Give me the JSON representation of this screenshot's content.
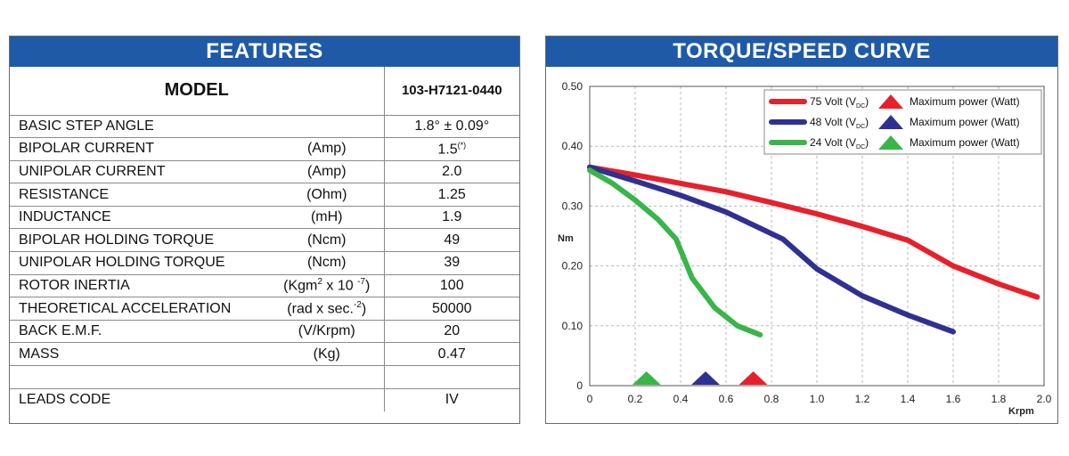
{
  "features": {
    "title": "FEATURES",
    "model_label": "MODEL",
    "model_value": "103-H7121-0440",
    "rows": [
      {
        "name": "BASIC STEP ANGLE",
        "unit": "",
        "value": "1.8° ± 0.09°"
      },
      {
        "name": "BIPOLAR CURRENT",
        "unit": "(Amp)",
        "value": "1.5",
        "note": "(*)"
      },
      {
        "name": "UNIPOLAR CURRENT",
        "unit": "(Amp)",
        "value": "2.0"
      },
      {
        "name": "RESISTANCE",
        "unit": "(Ohm)",
        "value": "1.25"
      },
      {
        "name": "INDUCTANCE",
        "unit": "(mH)",
        "value": "1.9"
      },
      {
        "name": "BIPOLAR HOLDING TORQUE",
        "unit": "(Ncm)",
        "value": "49"
      },
      {
        "name": "UNIPOLAR HOLDING TORQUE",
        "unit": "(Ncm)",
        "value": "39"
      },
      {
        "name": "ROTOR INERTIA",
        "unit": "(Kgm",
        "unit_sup1": "2",
        "unit_mid": " x 10 ",
        "unit_sup2": "-7",
        "unit_end": ")",
        "value": "100"
      },
      {
        "name": "THEORETICAL ACCELERATION",
        "unit": "(rad x sec.",
        "unit_sup1": "-2",
        "unit_end": ")",
        "value": "50000"
      },
      {
        "name": "BACK E.M.F.",
        "unit": "(V/Krpm)",
        "value": "20"
      },
      {
        "name": "MASS",
        "unit": "(Kg)",
        "value": "0.47"
      },
      {
        "name": "",
        "unit": "",
        "value": ""
      },
      {
        "name": "LEADS CODE",
        "unit": "",
        "value": "IV"
      }
    ]
  },
  "chart_data": {
    "type": "line",
    "title": "TORQUE/SPEED CURVE",
    "xlabel": "Krpm",
    "ylabel": "Nm",
    "xlim": [
      0,
      2.0
    ],
    "ylim": [
      0,
      0.5
    ],
    "xticks": [
      "0",
      "0.2",
      "0.4",
      "0.6",
      "0.8",
      "1.0",
      "1.2",
      "1.4",
      "1.6",
      "1.8",
      "2.0"
    ],
    "yticks": [
      "0",
      "0.10",
      "0.20",
      "0.30",
      "0.40",
      "0.50"
    ],
    "grid": true,
    "legend_position": "top-right",
    "series": [
      {
        "name": "75 Volt (V",
        "name_sub": "DC",
        "name_end": ")",
        "color": "#e8202a",
        "x": [
          0,
          0.2,
          0.4,
          0.6,
          0.8,
          1.0,
          1.2,
          1.4,
          1.6,
          1.8,
          1.97
        ],
        "y": [
          0.365,
          0.352,
          0.338,
          0.324,
          0.306,
          0.287,
          0.266,
          0.243,
          0.2,
          0.17,
          0.148
        ],
        "max_power_label": "Maximum power (Watt)",
        "marker_x": 0.72
      },
      {
        "name": "48 Volt (V",
        "name_sub": "DC",
        "name_end": ")",
        "color": "#2e3192",
        "x": [
          0,
          0.2,
          0.4,
          0.6,
          0.85,
          1.0,
          1.2,
          1.4,
          1.6
        ],
        "y": [
          0.365,
          0.342,
          0.318,
          0.29,
          0.245,
          0.195,
          0.15,
          0.118,
          0.09
        ],
        "max_power_label": "Maximum power (Watt)",
        "marker_x": 0.51
      },
      {
        "name": "24 Volt (V",
        "name_sub": "DC",
        "name_end": ")",
        "color": "#39b54a",
        "x": [
          0,
          0.1,
          0.2,
          0.3,
          0.38,
          0.45,
          0.55,
          0.65,
          0.75
        ],
        "y": [
          0.36,
          0.338,
          0.31,
          0.278,
          0.245,
          0.18,
          0.13,
          0.1,
          0.085
        ],
        "max_power_label": "Maximum power (Watt)",
        "marker_x": 0.25
      }
    ]
  }
}
